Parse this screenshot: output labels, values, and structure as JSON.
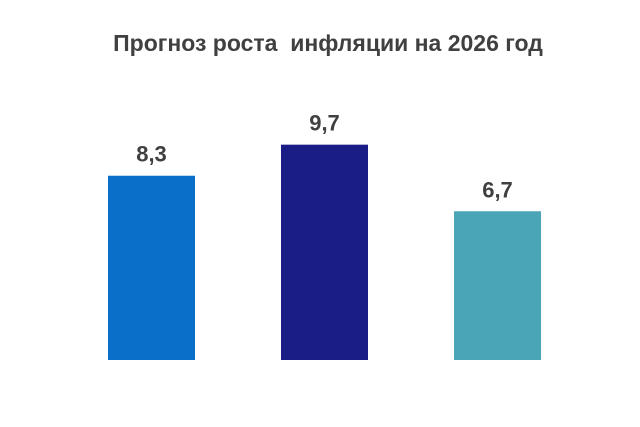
{
  "chart_data": {
    "type": "bar",
    "title": "Прогноз роста  инфляции на 2026 год",
    "categories": [
      "",
      "",
      ""
    ],
    "values": [
      8.3,
      9.7,
      6.7
    ],
    "value_labels": [
      "8,3",
      "9,7",
      "6,7"
    ],
    "colors": [
      "#0a6fc8",
      "#1a1d86",
      "#4aa5b7"
    ],
    "ylim": [
      0,
      11
    ],
    "grid": false,
    "legend": "none",
    "xlabel": "",
    "ylabel": ""
  }
}
